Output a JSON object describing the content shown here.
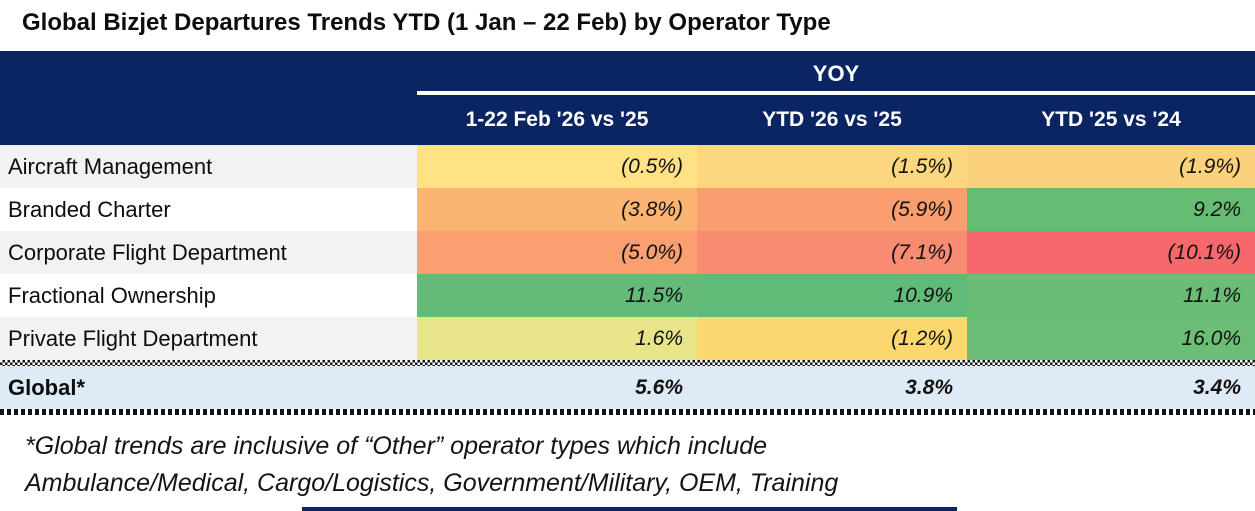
{
  "title": "Global Bizjet Departures Trends YTD (1 Jan – 22 Feb) by Operator Type",
  "table": {
    "group_header": "YOY",
    "columns": [
      "1-22 Feb '26 vs '25",
      "YTD '26 vs '25",
      "YTD '25 vs '24"
    ],
    "rows": [
      {
        "label": "Aircraft Management",
        "cells": [
          {
            "text": "(0.5%)",
            "bg": "#FFE285"
          },
          {
            "text": "(1.5%)",
            "bg": "#FDD77F"
          },
          {
            "text": "(1.9%)",
            "bg": "#FCD17C"
          }
        ]
      },
      {
        "label": "Branded Charter",
        "cells": [
          {
            "text": "(3.8%)",
            "bg": "#FAB573"
          },
          {
            "text": "(5.9%)",
            "bg": "#F99E6E"
          },
          {
            "text": "9.2%",
            "bg": "#67BC74"
          }
        ]
      },
      {
        "label": "Corporate Flight Department",
        "cells": [
          {
            "text": "(5.0%)",
            "bg": "#F99F70"
          },
          {
            "text": "(7.1%)",
            "bg": "#F88B72"
          },
          {
            "text": "(10.1%)",
            "bg": "#F7686C"
          }
        ]
      },
      {
        "label": "Fractional Ownership",
        "cells": [
          {
            "text": "11.5%",
            "bg": "#64BB77"
          },
          {
            "text": "10.9%",
            "bg": "#61BB78"
          },
          {
            "text": "11.1%",
            "bg": "#69BD74"
          }
        ]
      },
      {
        "label": "Private Flight Department",
        "cells": [
          {
            "text": "1.6%",
            "bg": "#E8E48A"
          },
          {
            "text": "(1.2%)",
            "bg": "#FCD76E"
          },
          {
            "text": "16.0%",
            "bg": "#6BBE74"
          }
        ]
      }
    ],
    "global_row": {
      "label": "Global*",
      "cells": [
        {
          "text": "5.6%"
        },
        {
          "text": "3.8%"
        },
        {
          "text": "3.4%"
        }
      ]
    }
  },
  "footnote": {
    "line1": "*Global trends are inclusive of “Other” operator types which include",
    "line2": "Ambulance/Medical, Cargo/Logistics, Government/Military, OEM, Training"
  },
  "colors": {
    "header_navy": "#0B2462",
    "row_alt": "#F2F2F2",
    "row_white": "#FFFFFF",
    "global_bg": "#DEEBF7",
    "header_text": "#FFFFFF",
    "negative_format": "parentheses"
  },
  "chart_data": {
    "type": "table",
    "title": "Global Bizjet Departures Trends YTD (1 Jan – 22 Feb) by Operator Type",
    "group_header": "YOY",
    "columns": [
      "1-22 Feb '26 vs '25",
      "YTD '26 vs '25",
      "YTD '25 vs '24"
    ],
    "categories": [
      "Aircraft Management",
      "Branded Charter",
      "Corporate Flight Department",
      "Fractional Ownership",
      "Private Flight Department",
      "Global*"
    ],
    "series": [
      {
        "name": "1-22 Feb '26 vs '25",
        "values": [
          -0.5,
          -3.8,
          -5.0,
          11.5,
          1.6,
          5.6
        ]
      },
      {
        "name": "YTD '26 vs '25",
        "values": [
          -1.5,
          -5.9,
          -7.1,
          10.9,
          -1.2,
          3.8
        ]
      },
      {
        "name": "YTD '25 vs '24",
        "values": [
          -1.9,
          9.2,
          -10.1,
          11.1,
          16.0,
          3.4
        ]
      }
    ],
    "units": "percent YOY change, negatives shown in parentheses",
    "color_coding": "red-yellow-green heatmap scale by value",
    "footnote": "*Global trends are inclusive of “Other” operator types which include Ambulance/Medical, Cargo/Logistics, Government/Military, OEM, Training"
  }
}
